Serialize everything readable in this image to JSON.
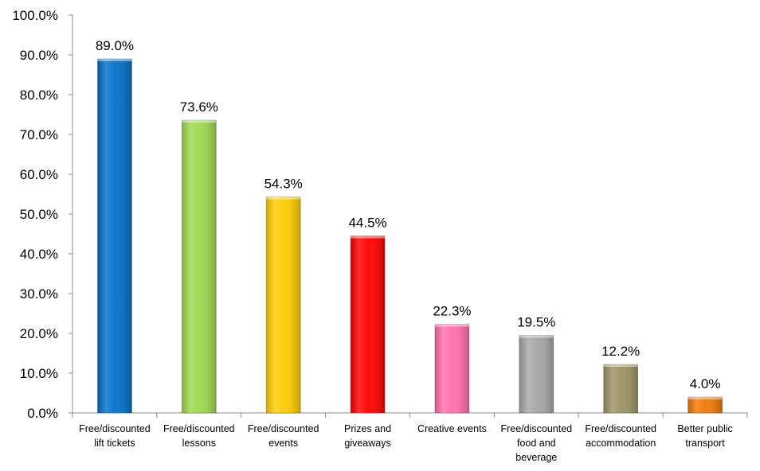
{
  "chart_data": {
    "type": "bar",
    "title": "",
    "xlabel": "",
    "ylabel": "",
    "ylim": [
      0,
      100
    ],
    "yticks": [
      "0.0%",
      "10.0%",
      "20.0%",
      "30.0%",
      "40.0%",
      "50.0%",
      "60.0%",
      "70.0%",
      "80.0%",
      "90.0%",
      "100.0%"
    ],
    "grid": false,
    "legend": "none",
    "categories": [
      [
        "Free/discounted",
        "lift tickets"
      ],
      [
        "Free/discounted",
        "lessons"
      ],
      [
        "Free/discounted",
        "events"
      ],
      [
        "Prizes and",
        "giveaways"
      ],
      [
        "Creative events"
      ],
      [
        "Free/discounted",
        "food and",
        "beverage"
      ],
      [
        "Free/discounted",
        "accommodation"
      ],
      [
        "Better public",
        "transport"
      ]
    ],
    "values": [
      89.0,
      73.6,
      54.3,
      44.5,
      22.3,
      19.5,
      12.2,
      4.0
    ],
    "data_labels": [
      "89.0%",
      "73.6%",
      "54.3%",
      "44.5%",
      "22.3%",
      "19.5%",
      "12.2%",
      "4.0%"
    ],
    "colors": [
      "#0070C8",
      "#9ED94F",
      "#FFCC00",
      "#FF0000",
      "#FF6FA8",
      "#A6A6A6",
      "#9C9363",
      "#F0780A"
    ]
  }
}
